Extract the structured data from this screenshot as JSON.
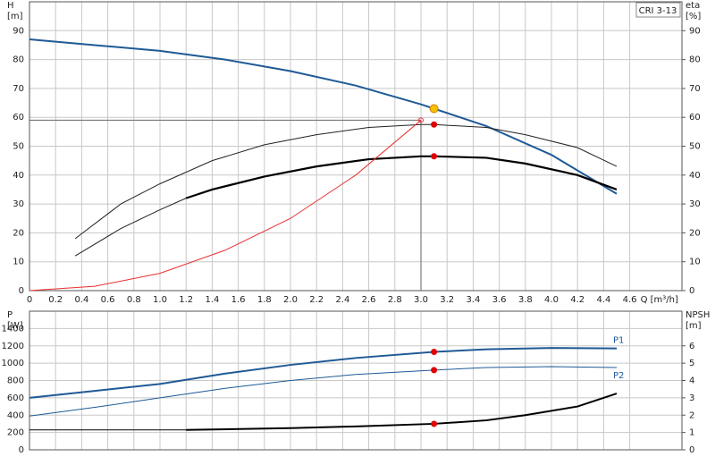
{
  "chart_data": [
    {
      "type": "line",
      "legend_box": "CRI 3-13",
      "ylabel": "H",
      "yunit": "[m]",
      "y2label": "eta",
      "y2unit": "[%]",
      "xlabel": "Q [m³/h]",
      "xlim": [
        0,
        5
      ],
      "ylim": [
        0,
        100
      ],
      "y2lim": [
        0,
        100
      ],
      "grid": true,
      "xticklabels": true,
      "xticks": [
        0,
        0.2,
        0.4,
        0.6,
        0.8,
        {
          "value": 1,
          "label": "1.0"
        },
        1.2,
        1.4,
        1.6,
        1.8,
        {
          "value": 2,
          "label": "2.0"
        },
        2.2,
        2.4,
        2.6,
        2.8,
        {
          "value": 3,
          "label": "3.0"
        },
        3.2,
        3.4,
        3.6,
        3.8,
        {
          "value": 4,
          "label": "4.0"
        },
        4.2,
        4.4,
        4.6
      ],
      "yticks": [
        0,
        10,
        20,
        30,
        40,
        50,
        60,
        70,
        80,
        90
      ],
      "y2ticks": [
        0,
        10,
        20,
        30,
        40,
        50,
        60,
        70,
        80,
        90
      ],
      "series": [
        {
          "color": "#1f5a96",
          "width": 2,
          "x": [
            0,
            0.5,
            1.0,
            1.5,
            2.0,
            2.5,
            3.0,
            3.1,
            3.5,
            4.0,
            4.5
          ],
          "values": [
            87,
            85,
            83,
            80,
            76,
            71,
            64.5,
            63,
            57,
            47,
            33.5
          ]
        },
        {
          "color": "#222222",
          "width": 1,
          "axis": "y2",
          "x": [
            0.35,
            0.7,
            1.0,
            1.4,
            1.8,
            2.2,
            2.6,
            3.0,
            3.1,
            3.5,
            3.8,
            4.2,
            4.5
          ],
          "values": [
            18,
            30,
            37,
            45,
            50.5,
            54,
            56.5,
            57.5,
            57.5,
            56.5,
            54,
            49.5,
            43
          ]
        },
        {
          "color": "#222222",
          "width": 1,
          "axis": "y2",
          "x": [
            0.35,
            0.7,
            1.0,
            1.2
          ],
          "values": [
            12,
            21.5,
            28,
            32
          ]
        },
        {
          "color": "#000000",
          "width": 2.2,
          "axis": "y2",
          "x": [
            1.2,
            1.4,
            1.8,
            2.2,
            2.6,
            3.0,
            3.1,
            3.5,
            3.8,
            4.2,
            4.5
          ],
          "values": [
            32,
            35,
            39.5,
            43,
            45.5,
            46.5,
            46.5,
            46,
            44,
            40,
            35
          ]
        },
        {
          "color": "#e83030",
          "width": 1,
          "x": [
            0,
            0.5,
            1.0,
            1.5,
            2.0,
            2.5,
            3.0
          ],
          "values": [
            0,
            1.5,
            6,
            14,
            25,
            40,
            59
          ]
        }
      ],
      "guide": {
        "x": 3.0,
        "y": 59
      },
      "points": [
        {
          "x": 3.1,
          "y": 63,
          "color": "#f5c000"
        },
        {
          "x": 3.1,
          "y": 57.5,
          "color": "#e00000"
        },
        {
          "x": 3.1,
          "y": 46.5,
          "color": "#e00000"
        }
      ]
    },
    {
      "type": "line",
      "ylabel": "P",
      "yunit": "[W]",
      "y2label": "NPSH",
      "y2unit": "[m]",
      "xlim": [
        0,
        5
      ],
      "ylim": [
        0,
        1600
      ],
      "y2lim": [
        0,
        8
      ],
      "grid": true,
      "xticklabels": false,
      "xticks": [
        0,
        0.2,
        0.4,
        0.6,
        0.8,
        1,
        1.2,
        1.4,
        1.6,
        1.8,
        2,
        2.2,
        2.4,
        2.6,
        2.8,
        3,
        3.2,
        3.4,
        3.6,
        3.8,
        4,
        4.2,
        4.4,
        4.6
      ],
      "yticks": [
        0,
        200,
        400,
        600,
        800,
        1000,
        1200,
        1400
      ],
      "y2ticks": [
        0,
        1,
        2,
        3,
        4,
        5,
        6
      ],
      "series": [
        {
          "name": "P1",
          "color": "#1f5a96",
          "width": 2,
          "x": [
            0,
            0.5,
            1.0,
            1.5,
            2.0,
            2.5,
            3.1,
            3.5,
            4.0,
            4.5
          ],
          "values": [
            600,
            680,
            760,
            880,
            980,
            1060,
            1130,
            1160,
            1175,
            1170
          ]
        },
        {
          "name": "P2",
          "color": "#1f5a96",
          "width": 1,
          "x": [
            0,
            0.5,
            1.0,
            1.5,
            2.0,
            2.5,
            3.1,
            3.5,
            4.0,
            4.5
          ],
          "values": [
            390,
            490,
            600,
            710,
            800,
            870,
            920,
            950,
            960,
            950
          ]
        },
        {
          "color": "#000000",
          "width": 1,
          "axis": "y2",
          "x": [
            0,
            1.2
          ],
          "values": [
            1.15,
            1.15
          ]
        },
        {
          "color": "#000000",
          "width": 2,
          "axis": "y2",
          "x": [
            1.2,
            2.0,
            2.5,
            3.1,
            3.5,
            3.8,
            4.2,
            4.5
          ],
          "values": [
            1.15,
            1.25,
            1.35,
            1.5,
            1.7,
            2.0,
            2.5,
            3.25
          ]
        }
      ],
      "points": [
        {
          "x": 3.1,
          "y": 1130,
          "color": "#e00000"
        },
        {
          "x": 3.1,
          "y": 920,
          "color": "#e00000"
        },
        {
          "x": 3.1,
          "y": 1.5,
          "color": "#e00000",
          "axis": "y2"
        }
      ]
    }
  ]
}
